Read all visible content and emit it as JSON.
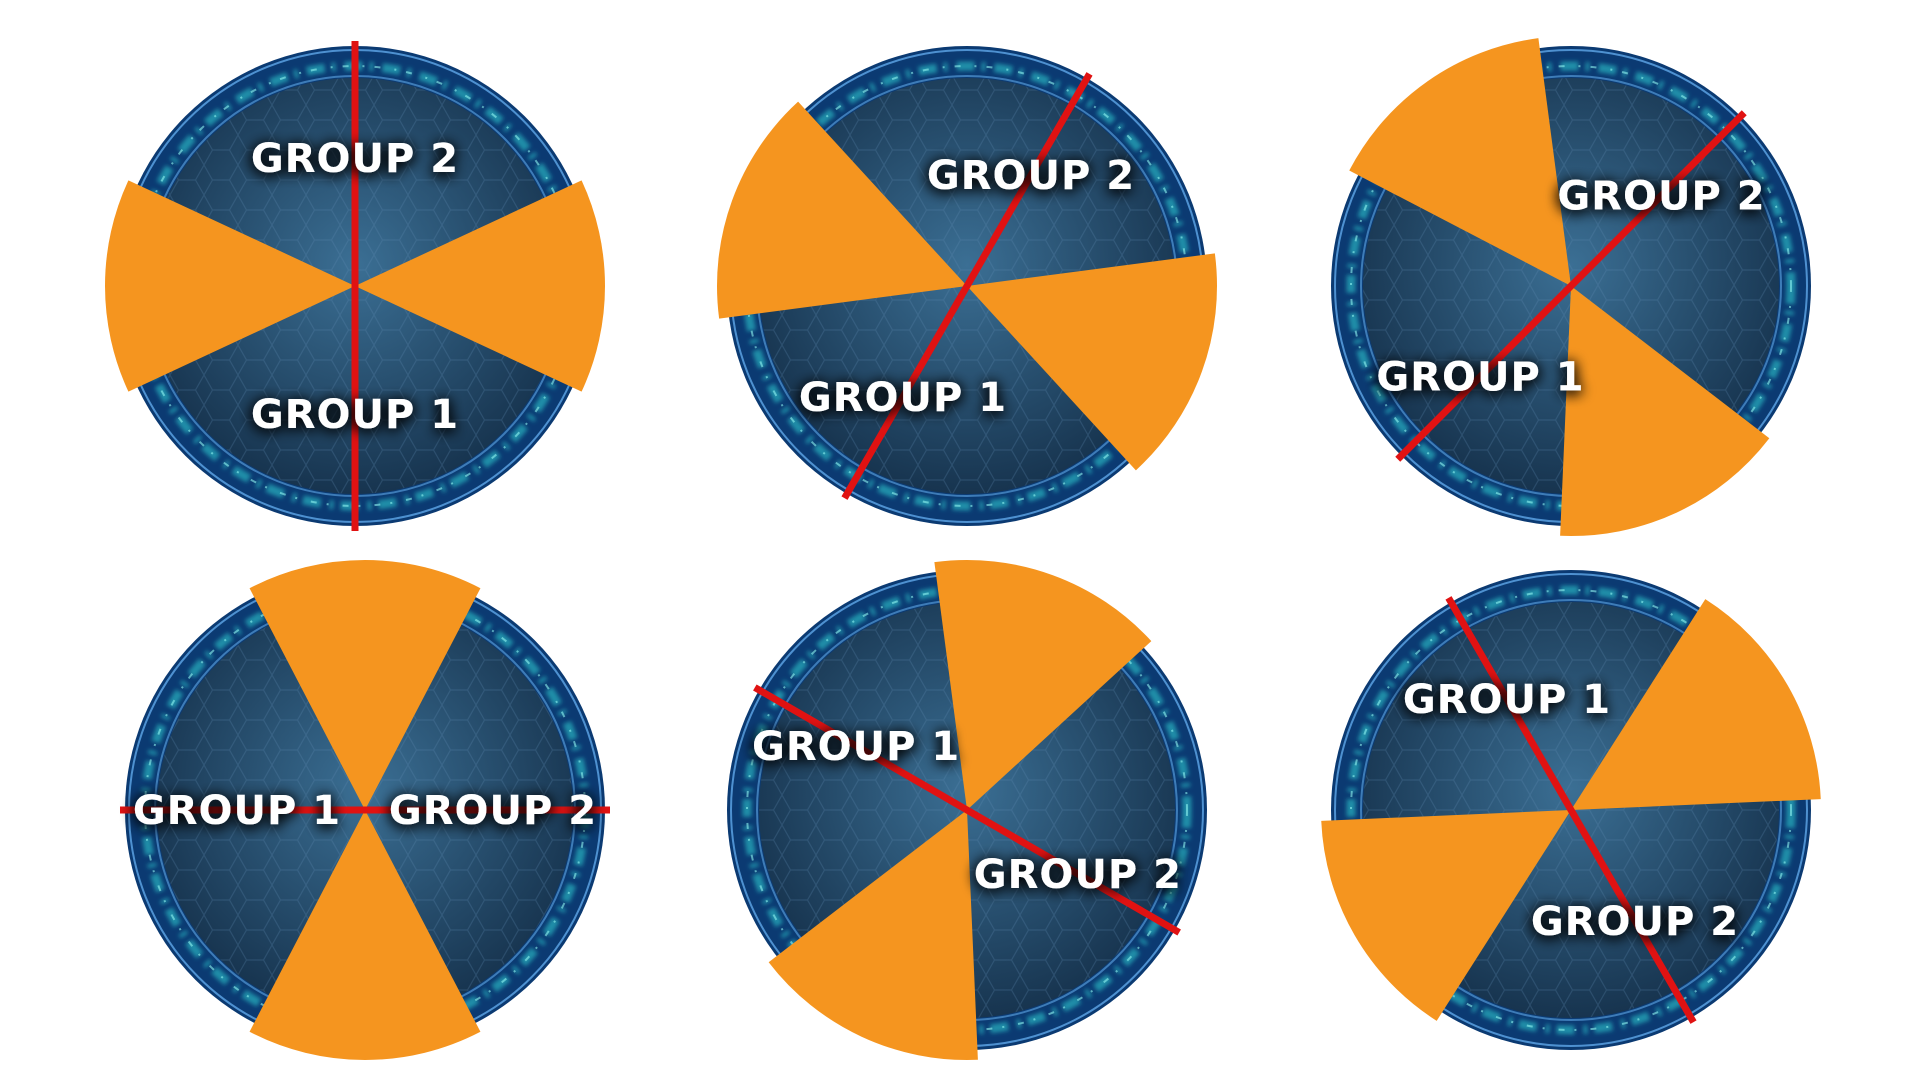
{
  "colors": {
    "sector_fill": "#f5951f",
    "divider_line": "#e01212",
    "label_text": "#ffffff",
    "ring_outer": "#0b3a72",
    "ring_glow": "#2fd3d6",
    "disc_center": "#3b6f94",
    "disc_edge": "#17344f"
  },
  "labels": {
    "group_1": "GROUP 1",
    "group_2": "GROUP 2"
  },
  "diagrams": [
    {
      "id": "diagram-1",
      "divider_angle_deg": 90,
      "sector_centers_deg": [
        0,
        180
      ],
      "sector_width_deg": 50
    },
    {
      "id": "diagram-2",
      "divider_angle_deg": 60,
      "sector_centers_deg": [
        -20,
        160
      ],
      "sector_width_deg": 55
    },
    {
      "id": "diagram-3",
      "divider_angle_deg": 45,
      "sector_centers_deg": [
        -65,
        125
      ],
      "sector_width_deg": 55
    },
    {
      "id": "diagram-4",
      "divider_angle_deg": 0,
      "sector_centers_deg": [
        -90,
        90
      ],
      "sector_width_deg": 55
    },
    {
      "id": "diagram-5",
      "divider_angle_deg": -30,
      "sector_centers_deg": [
        -115,
        70
      ],
      "sector_width_deg": 55
    },
    {
      "id": "diagram-6",
      "divider_angle_deg": -60,
      "sector_centers_deg": [
        -150,
        30
      ],
      "sector_width_deg": 55
    }
  ]
}
